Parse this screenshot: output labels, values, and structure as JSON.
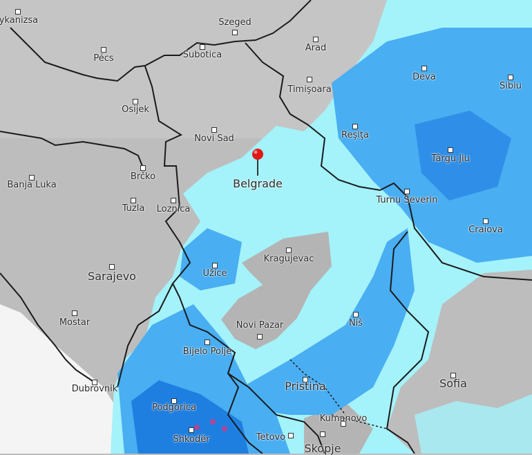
{
  "map": {
    "layer": "precipitation radar",
    "colors": {
      "land": "#bdbdbd",
      "sea": "#f4f4f4",
      "light_precip": "#a4f2fa",
      "medium_precip": "#49aef2",
      "heavy_precip": "#1f7fe0",
      "intense_precip": "#b0459a",
      "border": "#1a1a1a",
      "pin": "#e01818"
    },
    "selected_location": "Belgrade",
    "cities": [
      {
        "name": "Nagykanizsa"
      },
      {
        "name": "Szeged"
      },
      {
        "name": "Pécs"
      },
      {
        "name": "Subotica"
      },
      {
        "name": "Arad"
      },
      {
        "name": "Deva"
      },
      {
        "name": "Sibiu"
      },
      {
        "name": "Timişoara"
      },
      {
        "name": "Osijek"
      },
      {
        "name": "Novi Sad"
      },
      {
        "name": "Reşiţa"
      },
      {
        "name": "Târgu Jiu"
      },
      {
        "name": "Brčko"
      },
      {
        "name": "Belgrade"
      },
      {
        "name": "Banja Luka"
      },
      {
        "name": "Tuzla"
      },
      {
        "name": "Loznica"
      },
      {
        "name": "Turnu Severin"
      },
      {
        "name": "Craiova"
      },
      {
        "name": "Kragujevac"
      },
      {
        "name": "Sarajevo"
      },
      {
        "name": "Užice"
      },
      {
        "name": "Mostar"
      },
      {
        "name": "Niš"
      },
      {
        "name": "Novi Pazar"
      },
      {
        "name": "Bijelo Polje"
      },
      {
        "name": "Dubrovnik"
      },
      {
        "name": "Pristina"
      },
      {
        "name": "Sofia"
      },
      {
        "name": "Podgorica"
      },
      {
        "name": "Kumanovo"
      },
      {
        "name": "Shkodër"
      },
      {
        "name": "Tetovo"
      },
      {
        "name": "Skopje"
      }
    ]
  }
}
